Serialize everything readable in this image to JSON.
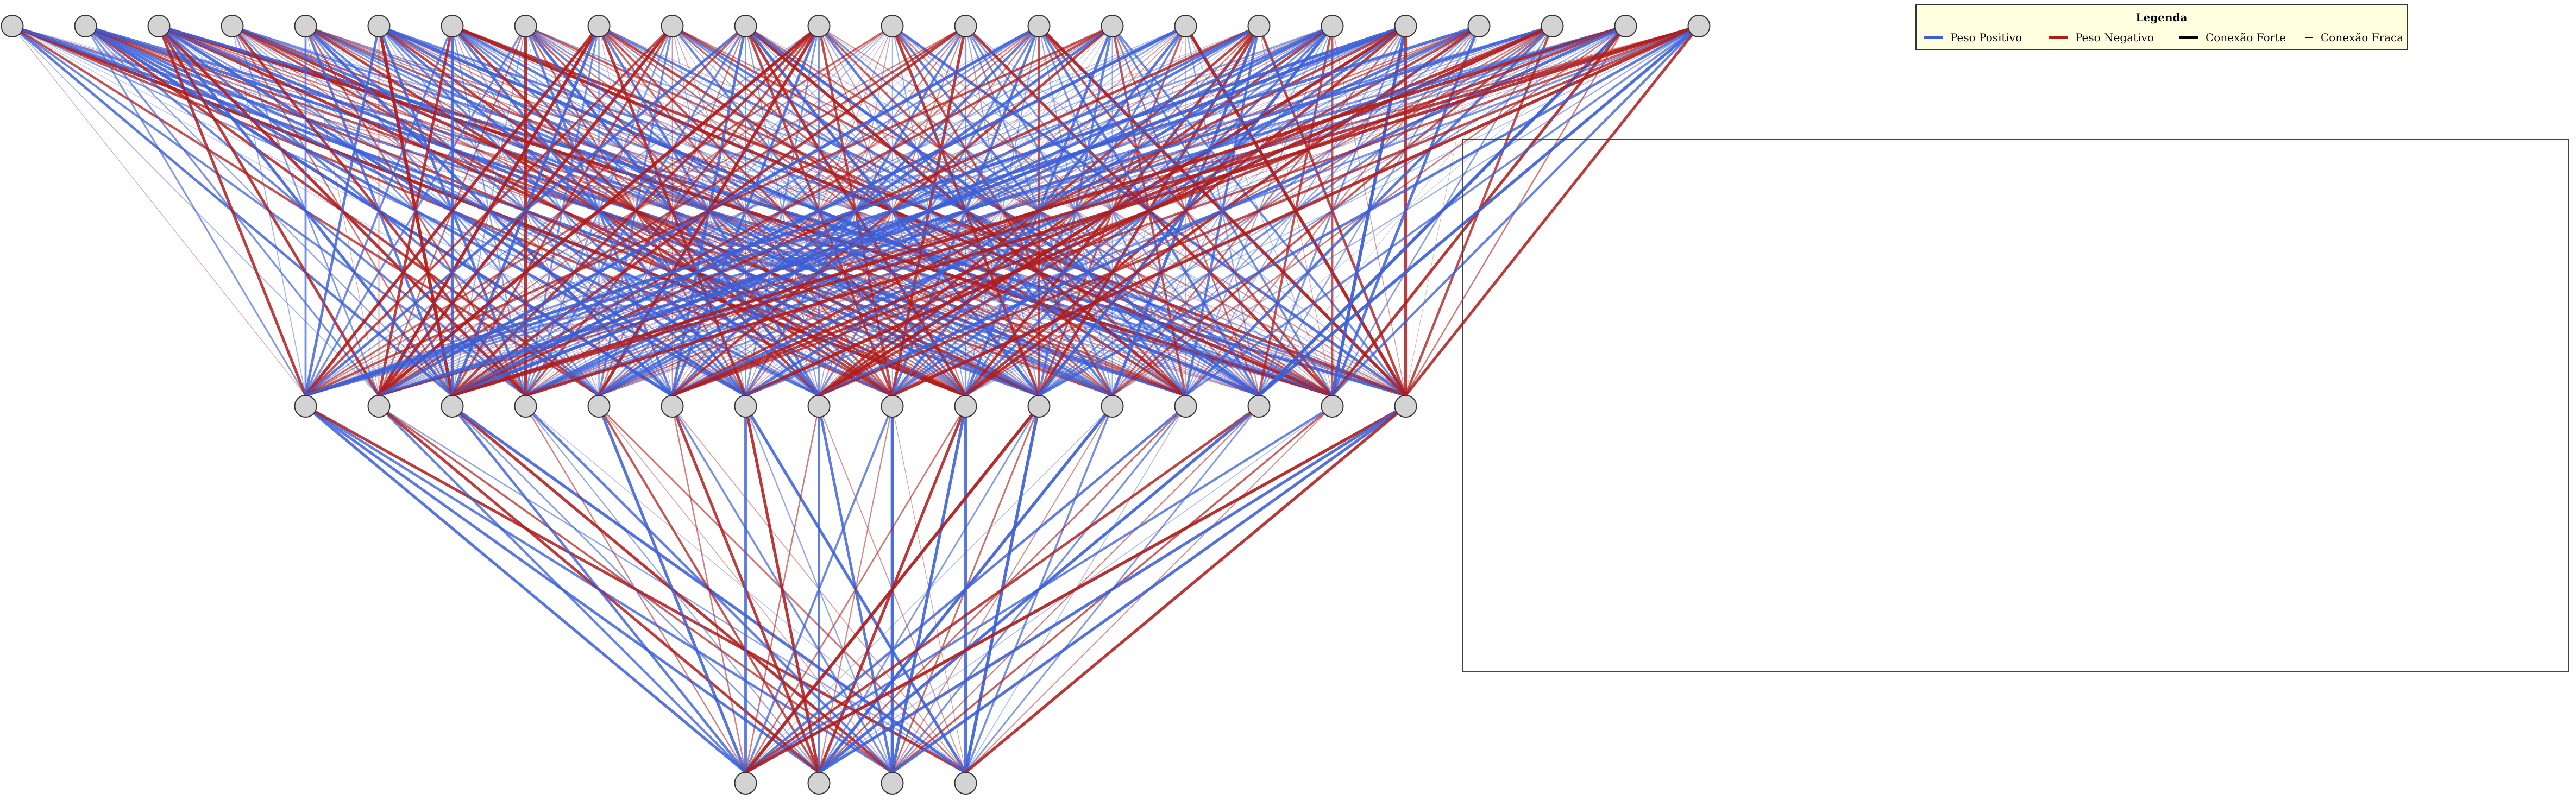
{
  "network": {
    "layers": [
      24,
      16,
      4
    ],
    "weights_l1": [
      [
        -0.11,
        0.21,
        0.78,
        0.64,
        -0.68,
        0.1,
        0.11,
        0.42,
        -0.69,
        -0.98,
        0.85,
        0.15,
        0.69,
        -0.2,
        0.12,
        0.04
      ],
      [
        0.47,
        0.53,
        0.33,
        0.66,
        -0.79,
        0.96,
        0.84,
        0.79,
        0.79,
        -0.71,
        -0.32,
        -0.65,
        0.89,
        -0.21,
        0.74,
        0.03
      ],
      [
        -0.84,
        -0.84,
        0.87,
        -0.9,
        0.72,
        0.14,
        0.9,
        0.44,
        0.04,
        -0.86,
        0.89,
        -0.33,
        -0.36,
        0.18,
        -0.99,
        0.9
      ],
      [
        0.21,
        0.43,
        -0.4,
        -0.81,
        0.46,
        0.23,
        -0.26,
        0.25,
        -0.7,
        -0.42,
        -0.89,
        0.78,
        -0.57,
        0.18,
        0.61,
        0.23
      ],
      [
        0.59,
        -0.1,
        0.77,
        -0.5,
        0.52,
        0.89,
        0.66,
        0.1,
        -0.8,
        -0.4,
        0.5,
        0.73,
        -0.59,
        -0.24,
        0.55,
        -0.3
      ],
      [
        0.78,
        -0.24,
        -0.99,
        0.8,
        0.13,
        0.4,
        0.64,
        0.81,
        -0.76,
        -0.4,
        0.85,
        -0.27,
        -0.28,
        0.97,
        0.17,
        0.67
      ],
      [
        0.61,
        -0.81,
        0.89,
        0.37,
        -0.18,
        0.33,
        0.81,
        -0.8,
        0.62,
        0.59,
        0.29,
        0.77,
        0.24,
        0.27,
        -0.96,
        -0.84
      ],
      [
        0.57,
        -0.41,
        0.26,
        -0.86,
        0.05,
        0.71,
        -0.49,
        0.9,
        -0.56,
        0.66,
        -0.35,
        0.44,
        0.13,
        -0.25,
        -0.6,
        0.33
      ],
      [
        -0.92,
        -0.96,
        0.87,
        0.53,
        0.35,
        -0.08,
        -0.85,
        0.75,
        -0.52,
        -0.66,
        0.29,
        -0.43,
        -0.77,
        0.33,
        0.72,
        -0.13
      ],
      [
        -0.7,
        -0.93,
        -0.65,
        0.44,
        0.58,
        -0.21,
        0.22,
        -0.17,
        0.06,
        0.66,
        0.21,
        -0.53,
        0.53,
        0.75,
        -0.64,
        -0.34
      ],
      [
        0.82,
        -0.57,
        0.1,
        0.6,
        -0.34,
        0.81,
        0.45,
        0.31,
        -0.75,
        -0.86,
        0.89,
        0.23,
        -0.95,
        0.91,
        -0.46,
        0.13
      ],
      [
        0.31,
        -0.98,
        -0.8,
        -0.66,
        -0.94,
        0.8,
        0.46,
        0.52,
        -0.74,
        -0.33,
        0.27,
        0.75,
        -0.62,
        0.53,
        0.08,
        -0.26
      ],
      [
        -0.52,
        -0.31,
        0.18,
        0.22,
        0.04,
        -0.08,
        -0.19,
        0.22,
        0.16,
        0.26,
        -0.85,
        -0.67,
        0.72,
        -0.36,
        0.21,
        0.83
      ],
      [
        -0.32,
        -0.64,
        -0.81,
        0.06,
        0.5,
        -0.3,
        0.7,
        -0.28,
        -0.85,
        0.49,
        0.27,
        0.47,
        0.57,
        0.45,
        -0.86,
        0.19
      ],
      [
        0.08,
        0.92,
        0.48,
        -0.36,
        -0.39,
        0.76,
        -0.36,
        0.59,
        0.78,
        0.32,
        -0.67,
        0.28,
        0.47,
        0.75,
        -0.65,
        -0.97
      ],
      [
        -0.67,
        -0.16,
        -0.71,
        0.31,
        0.84,
        -0.76,
        0.1,
        0.1,
        -0.03,
        0.8,
        0.69,
        0.25,
        -0.66,
        -0.43,
        0.59,
        0.62
      ],
      [
        0.16,
        0.29,
        0.95,
        0.19,
        0.39,
        0.14,
        -0.21,
        -0.2,
        0.81,
        0.61,
        -0.59,
        -0.05,
        -0.06,
        0.34,
        0.14,
        -0.99
      ],
      [
        -0.08,
        0.26,
        -0.78,
        0.78,
        0.81,
        0.33,
        0.1,
        -0.76,
        -0.34,
        -0.85,
        -0.86,
        0.89,
        0.75,
        0.09,
        -0.12,
        -0.77
      ],
      [
        0.45,
        -0.17,
        0.35,
        0.84,
        0.76,
        -0.21,
        0.83,
        -0.78,
        0.51,
        0.71,
        0.94,
        0.24,
        0.3,
        -0.68,
        -0.61,
        -0.17
      ],
      [
        0.93,
        0.16,
        0.99,
        0.56,
        0.42,
        -0.76,
        0.08,
        -0.98,
        0.77,
        -0.83,
        0.12,
        -0.43,
        0.27,
        0.52,
        0.99,
        -0.84
      ],
      [
        0.85,
        0.27,
        -0.06,
        -0.36,
        -0.46,
        0.85,
        0.38,
        -0.74,
        0.17,
        -0.87,
        0.42,
        0.32,
        -0.32,
        0.37,
        0.84,
        -0.05
      ],
      [
        0.57,
        0.88,
        0.15,
        0.25,
        -0.12,
        -0.87,
        -0.97,
        0.12,
        -0.38,
        -0.46,
        0.59,
        -0.63,
        0.81,
        -0.03,
        0.41,
        -0.72
      ],
      [
        0.49,
        0.77,
        -0.93,
        0.57,
        0.41,
        -0.79,
        0.21,
        0.9,
        0.1,
        0.25,
        0.39,
        -0.38,
        0.06,
        0.99,
        -0.87,
        -0.38
      ],
      [
        -0.08,
        -0.46,
        -0.84,
        -0.9,
        -0.08,
        -0.62,
        0.54,
        -0.72,
        -0.92,
        0.16,
        0.78,
        0.29,
        0.6,
        0.93,
        0.7,
        -0.85
      ]
    ],
    "weights_l2": [
      [
        0.85,
        0.82,
        0.74,
        -0.85
      ],
      [
        0.69,
        -0.83,
        -0.58,
        0.36
      ],
      [
        0.76,
        0.42,
        -0.88,
        0.89
      ],
      [
        -0.35,
        0.31,
        0.73,
        0.13
      ],
      [
        0.87,
        -0.65,
        -0.16,
        -0.45
      ],
      [
        -0.36,
        -0.83,
        0.57,
        -0.19
      ],
      [
        0.79,
        -0.88,
        0.34,
        0.87
      ],
      [
        -0.38,
        0.76,
        0.8,
        -0.23
      ],
      [
        0.64,
        -0.3,
        0.94,
        -0.13
      ],
      [
        -0.41,
        -0.86,
        0.9,
        0.85
      ],
      [
        -0.97,
        0.45,
        -0.47,
        0.95
      ],
      [
        0.14,
        0.93,
        -0.26,
        0.58
      ],
      [
        0.76,
        -0.46,
        0.53,
        0.17
      ],
      [
        -0.78,
        0.91,
        -0.34,
        0.45
      ],
      [
        0.68,
        0.16,
        -0.56,
        -0.25
      ],
      [
        -0.93,
        0.88,
        0.88,
        -0.89
      ]
    ]
  },
  "colors": {
    "positive": "#3b5fd9",
    "negative": "#b01c1c",
    "node_fill": "#d3d3d3",
    "node_stroke": "#333333",
    "legend_bg": "#ffffe0"
  },
  "legend": {
    "title": "Legenda",
    "items": [
      {
        "label": "Peso Positivo",
        "color": "#3b5fd9",
        "style": "solid"
      },
      {
        "label": "Peso Negativo",
        "color": "#b01c1c",
        "style": "solid"
      },
      {
        "label": "Conexão Forte",
        "color": "#000000",
        "style": "thick"
      },
      {
        "label": "Conexão Fraca",
        "color": "#000000",
        "style": "thin"
      }
    ]
  }
}
